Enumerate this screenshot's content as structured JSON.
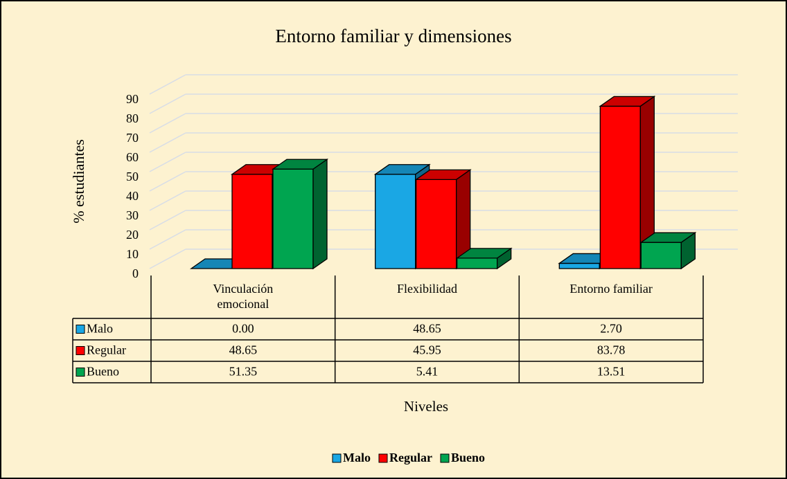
{
  "chart_data": {
    "type": "bar",
    "title": "Entorno familiar y dimensiones",
    "y_label": "% estudiantes",
    "x_label": "Niveles",
    "categories": [
      "Vinculación emocional",
      "Flexibilidad",
      "Entorno familiar"
    ],
    "series": [
      {
        "name": "Malo",
        "color": "#1aa7e4",
        "values": [
          0,
          48.65,
          2.7
        ],
        "value_labels": [
          "0.00",
          "48.65",
          "2.70"
        ]
      },
      {
        "name": "Regular",
        "color": "#ff0000",
        "values": [
          48.65,
          45.95,
          83.78
        ],
        "value_labels": [
          "48.65",
          "45.95",
          "83.78"
        ]
      },
      {
        "name": "Bueno",
        "color": "#00a550",
        "values": [
          51.35,
          5.41,
          13.51
        ],
        "value_labels": [
          "51.35",
          "5.41",
          "13.51"
        ]
      }
    ],
    "ylim": [
      0,
      90
    ],
    "yticks": [
      0,
      10,
      20,
      30,
      40,
      50,
      60,
      70,
      80,
      90
    ],
    "grid": true,
    "legend": "bottom"
  }
}
